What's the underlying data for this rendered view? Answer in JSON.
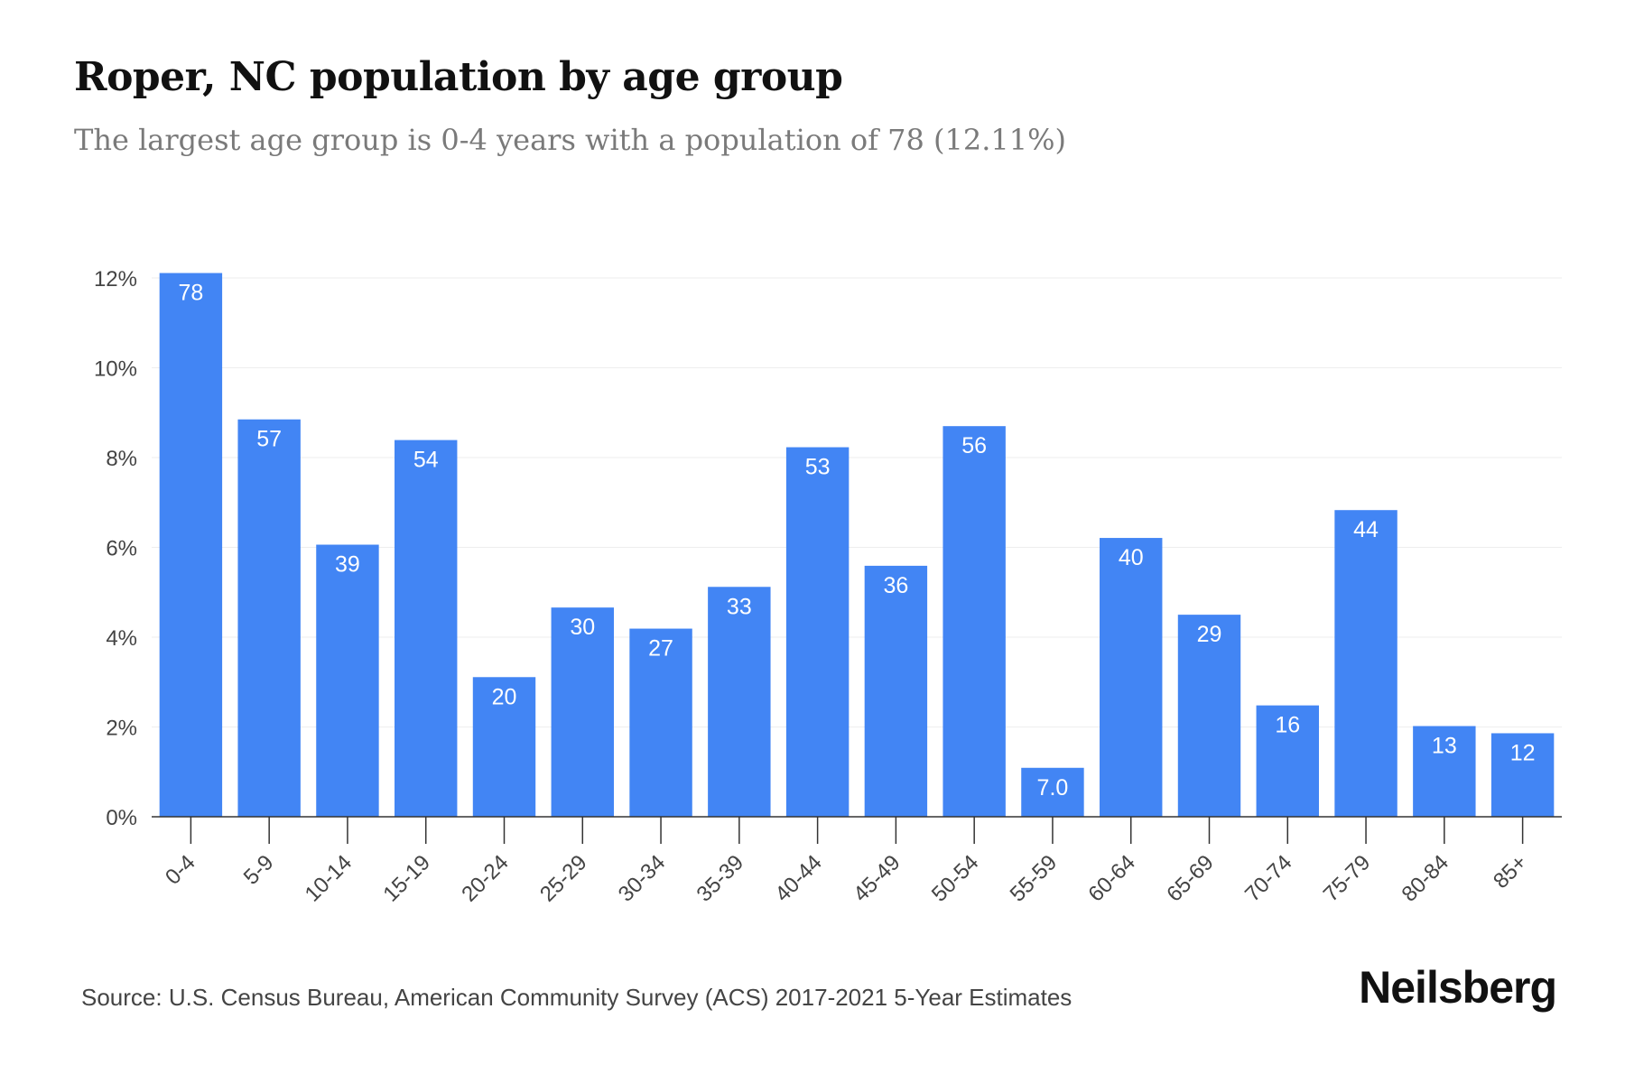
{
  "header": {
    "title": "Roper, NC population by age group",
    "subtitle": "The largest age group is 0-4 years with a population of 78 (12.11%)"
  },
  "footer": {
    "source": "Source: U.S. Census Bureau, American Community Survey (ACS) 2017-2021 5-Year Estimates",
    "brand": "Neilsberg"
  },
  "colors": {
    "bar": "#4285f4",
    "bar_label": "#ffffff",
    "grid": "#eeeeee",
    "axis": "#333333",
    "tick_text": "#444444"
  },
  "chart_data": {
    "type": "bar",
    "title": "Roper, NC population by age group",
    "subtitle": "The largest age group is 0-4 years with a population of 78 (12.11%)",
    "xlabel": "",
    "ylabel": "",
    "categories": [
      "0-4",
      "5-9",
      "10-14",
      "15-19",
      "20-24",
      "25-29",
      "30-34",
      "35-39",
      "40-44",
      "45-49",
      "50-54",
      "55-59",
      "60-64",
      "65-69",
      "70-74",
      "75-79",
      "80-84",
      "85+"
    ],
    "values": [
      12.11,
      8.85,
      6.06,
      8.39,
      3.11,
      4.66,
      4.19,
      5.12,
      8.23,
      5.59,
      8.7,
      1.09,
      6.21,
      4.5,
      2.48,
      6.83,
      2.02,
      1.86
    ],
    "data_labels": [
      "78",
      "57",
      "39",
      "54",
      "20",
      "30",
      "27",
      "33",
      "53",
      "36",
      "56",
      "7.0",
      "40",
      "29",
      "16",
      "44",
      "13",
      "12"
    ],
    "y_ticks": [
      "0%",
      "2%",
      "4%",
      "6%",
      "8%",
      "10%",
      "12%"
    ],
    "y_tick_values": [
      0,
      2,
      4,
      6,
      8,
      10,
      12
    ],
    "ylim": [
      0,
      12
    ],
    "grid": true,
    "legend": "none"
  }
}
